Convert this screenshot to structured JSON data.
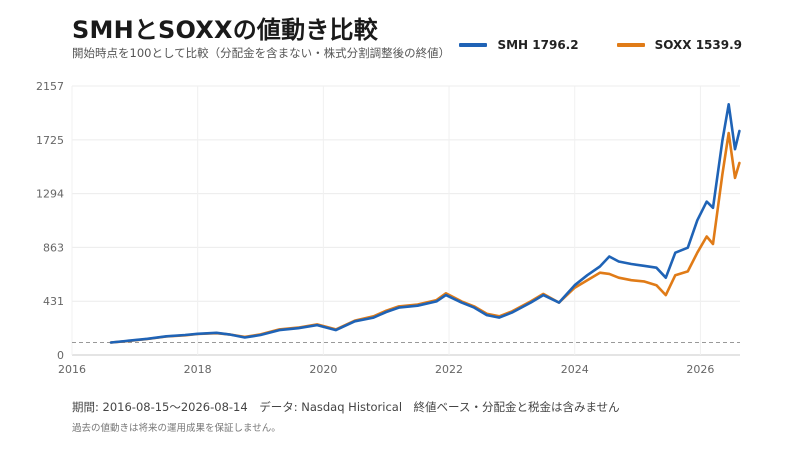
{
  "header": {
    "title": "SMHとSOXXの値動き比較",
    "subtitle": "開始時点を100として比較（分配金を含まない・株式分割調整後の終値）"
  },
  "legend": [
    {
      "label": "SMH 1796.2",
      "color": "#1f63b6"
    },
    {
      "label": "SOXX 1539.9",
      "color": "#e07b17"
    }
  ],
  "footer": {
    "source": "期間: 2016-08-15〜2026-08-14　データ: Nasdaq Historical　終値ベース・分配金と税金は含みません",
    "disclaimer": "過去の値動きは将来の運用成果を保証しません。"
  },
  "chart_data": {
    "type": "line",
    "title": "SMHとSOXXの値動き比較",
    "subtitle": "開始時点を100として比較（分配金を含まない・株式分割調整後の終値）",
    "x_range": [
      "2016-08-15",
      "2026-08-14"
    ],
    "xlim": [
      2016.0,
      2026.63
    ],
    "ylim": [
      0,
      2157
    ],
    "y_ticks": [
      0,
      431,
      863,
      1294,
      1725,
      2157
    ],
    "x_ticks": [
      2016,
      2018,
      2020,
      2022,
      2024,
      2026
    ],
    "baseline": 100,
    "grid": true,
    "legend_position": "top-right",
    "series": [
      {
        "name": "SMH",
        "color": "#1f63b6",
        "x": [
          2016.62,
          2016.9,
          2017.2,
          2017.5,
          2017.8,
          2018.0,
          2018.3,
          2018.5,
          2018.75,
          2019.0,
          2019.3,
          2019.6,
          2019.9,
          2020.2,
          2020.5,
          2020.8,
          2021.0,
          2021.2,
          2021.5,
          2021.8,
          2021.95,
          2022.2,
          2022.4,
          2022.6,
          2022.8,
          2023.0,
          2023.3,
          2023.5,
          2023.75,
          2024.0,
          2024.2,
          2024.4,
          2024.55,
          2024.7,
          2024.9,
          2025.1,
          2025.3,
          2025.45,
          2025.6,
          2025.8,
          2025.95,
          2026.1,
          2026.2,
          2026.35,
          2026.45,
          2026.55,
          2026.62
        ],
        "y": [
          100,
          115,
          130,
          150,
          160,
          170,
          178,
          165,
          140,
          160,
          200,
          215,
          240,
          200,
          270,
          300,
          345,
          380,
          395,
          430,
          480,
          420,
          380,
          320,
          300,
          340,
          420,
          480,
          420,
          560,
          640,
          710,
          790,
          750,
          730,
          715,
          700,
          620,
          820,
          860,
          1080,
          1230,
          1180,
          1720,
          2010,
          1650,
          1796.2
        ]
      },
      {
        "name": "SOXX",
        "color": "#e07b17",
        "x": [
          2016.62,
          2016.9,
          2017.2,
          2017.5,
          2017.8,
          2018.0,
          2018.3,
          2018.5,
          2018.75,
          2019.0,
          2019.3,
          2019.6,
          2019.9,
          2020.2,
          2020.5,
          2020.8,
          2021.0,
          2021.2,
          2021.5,
          2021.8,
          2021.95,
          2022.2,
          2022.4,
          2022.6,
          2022.8,
          2023.0,
          2023.3,
          2023.5,
          2023.75,
          2024.0,
          2024.2,
          2024.4,
          2024.55,
          2024.7,
          2024.9,
          2025.1,
          2025.3,
          2025.45,
          2025.6,
          2025.8,
          2025.95,
          2026.1,
          2026.2,
          2026.35,
          2026.45,
          2026.55,
          2026.62
        ],
        "y": [
          100,
          112,
          128,
          148,
          158,
          168,
          175,
          165,
          145,
          165,
          205,
          220,
          245,
          205,
          275,
          310,
          355,
          390,
          405,
          440,
          495,
          430,
          390,
          330,
          310,
          350,
          430,
          490,
          420,
          540,
          600,
          660,
          650,
          620,
          600,
          590,
          560,
          480,
          640,
          670,
          820,
          950,
          890,
          1450,
          1780,
          1420,
          1539.9
        ]
      }
    ]
  }
}
